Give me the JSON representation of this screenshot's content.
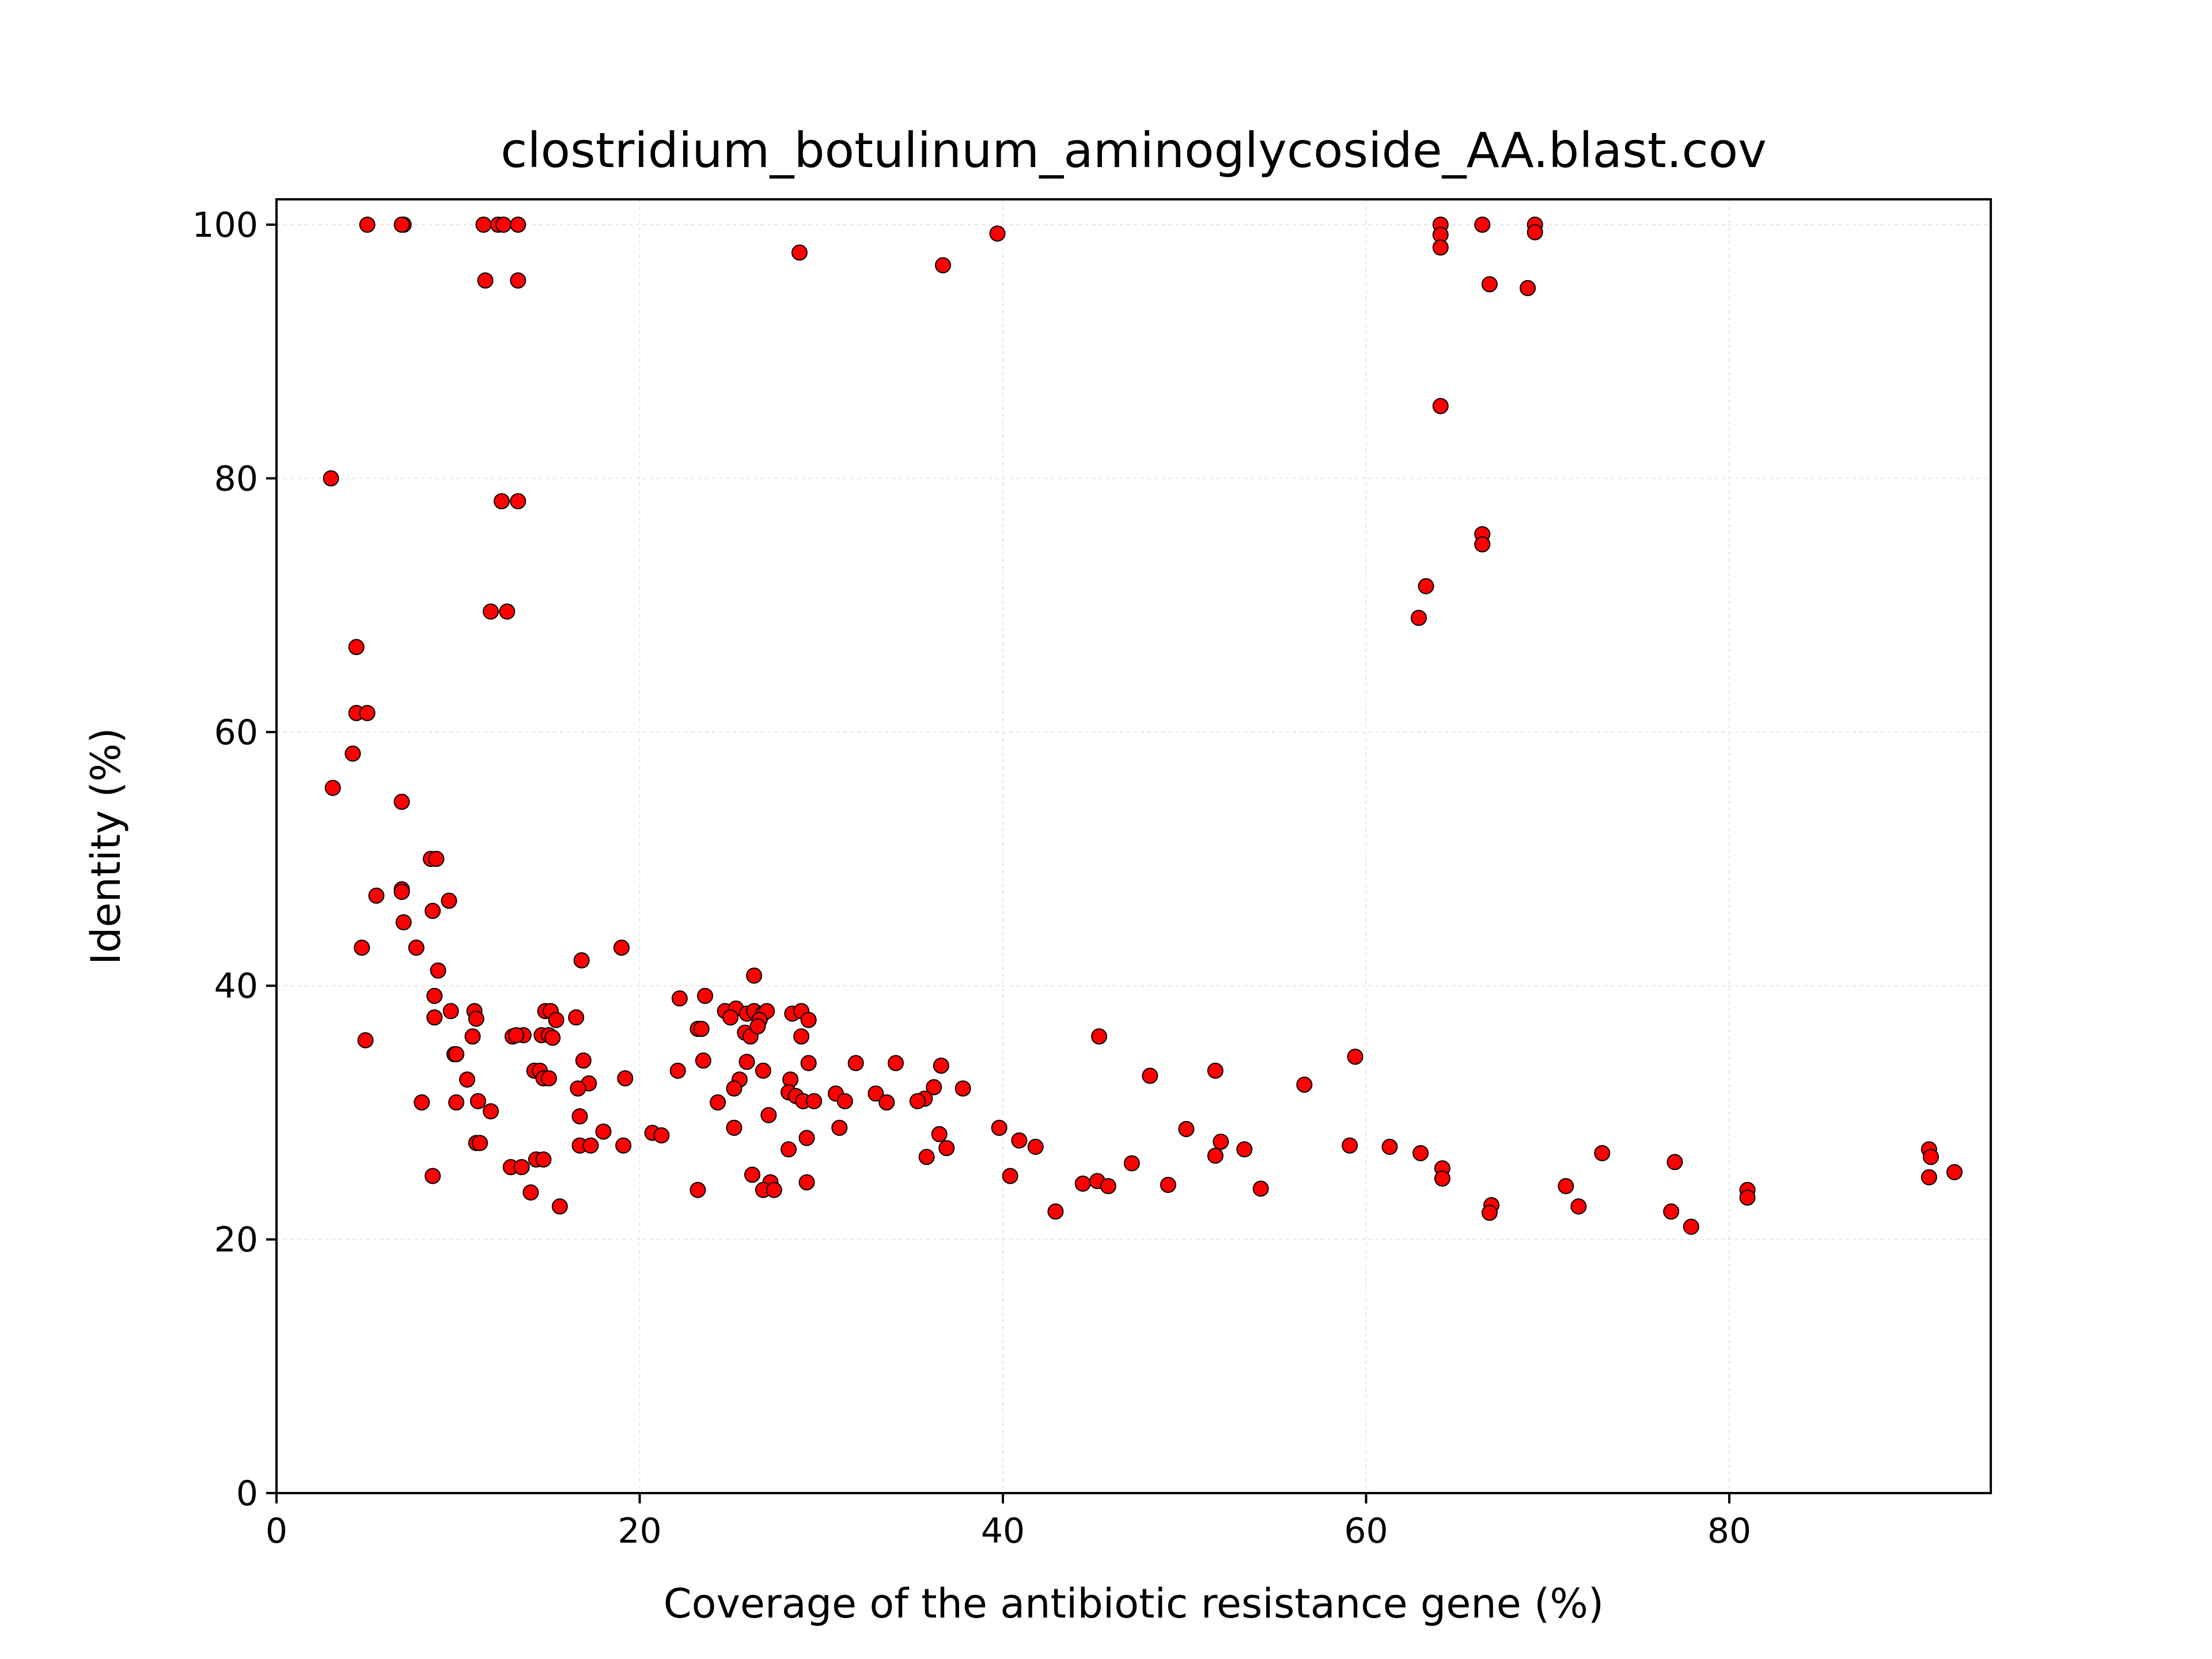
{
  "chart_data": {
    "type": "scatter",
    "title": "clostridium_botulinum_aminoglycoside_AA.blast.cov",
    "xlabel": "Coverage of the antibiotic resistance gene (%)",
    "ylabel": "Identity (%)",
    "xlim": [
      0,
      94.4
    ],
    "ylim": [
      0,
      102
    ],
    "xticks": [
      0,
      20,
      40,
      60,
      80
    ],
    "yticks": [
      0,
      20,
      40,
      60,
      80,
      100
    ],
    "grid": true,
    "marker_color": "#ff0000",
    "marker_edge_color": "#000000",
    "points": [
      [
        5,
        100
      ],
      [
        7,
        100
      ],
      [
        6.9,
        100
      ],
      [
        11.4,
        100
      ],
      [
        12.2,
        100
      ],
      [
        12.5,
        100
      ],
      [
        13.3,
        100
      ],
      [
        11.5,
        95.6
      ],
      [
        13.3,
        95.6
      ],
      [
        28.8,
        97.8
      ],
      [
        36.7,
        96.8
      ],
      [
        39.7,
        99.3
      ],
      [
        64.1,
        100
      ],
      [
        64.1,
        99.2
      ],
      [
        64.1,
        98.2
      ],
      [
        66.4,
        100
      ],
      [
        69.3,
        100
      ],
      [
        69.3,
        99.4
      ],
      [
        66.8,
        95.3
      ],
      [
        68.9,
        95
      ],
      [
        64.1,
        85.7
      ],
      [
        66.4,
        75.6
      ],
      [
        66.4,
        74.8
      ],
      [
        63.3,
        71.5
      ],
      [
        62.9,
        69
      ],
      [
        3,
        80
      ],
      [
        12.4,
        78.2
      ],
      [
        13.3,
        78.2
      ],
      [
        11.8,
        69.5
      ],
      [
        12.7,
        69.5
      ],
      [
        4.4,
        66.7
      ],
      [
        4.4,
        61.5
      ],
      [
        5,
        61.5
      ],
      [
        4.2,
        58.3
      ],
      [
        3.1,
        55.6
      ],
      [
        6.9,
        54.5
      ],
      [
        8.5,
        50
      ],
      [
        8.8,
        50
      ],
      [
        5.5,
        47.1
      ],
      [
        6.9,
        47.6
      ],
      [
        6.9,
        47.4
      ],
      [
        9.5,
        46.7
      ],
      [
        8.6,
        45.9
      ],
      [
        7,
        45
      ],
      [
        4.7,
        43
      ],
      [
        7.7,
        43
      ],
      [
        19,
        43
      ],
      [
        16.8,
        42
      ],
      [
        8.9,
        41.2
      ],
      [
        26.3,
        40.8
      ],
      [
        8.7,
        39.2
      ],
      [
        22.2,
        39
      ],
      [
        23.6,
        39.2
      ],
      [
        4.9,
        35.7
      ],
      [
        8.7,
        37.5
      ],
      [
        9.6,
        38
      ],
      [
        10.9,
        38
      ],
      [
        11,
        37.4
      ],
      [
        14.8,
        38
      ],
      [
        15.1,
        38
      ],
      [
        15.4,
        37.3
      ],
      [
        16.5,
        37.5
      ],
      [
        24.7,
        38
      ],
      [
        25.3,
        38.2
      ],
      [
        25,
        37.5
      ],
      [
        25.9,
        37.8
      ],
      [
        26.3,
        38
      ],
      [
        26.8,
        37.8
      ],
      [
        27,
        38
      ],
      [
        26.6,
        37.3
      ],
      [
        28.4,
        37.8
      ],
      [
        28.9,
        38
      ],
      [
        29.3,
        37.3
      ],
      [
        10.8,
        36
      ],
      [
        13,
        36
      ],
      [
        13.6,
        36.1
      ],
      [
        13.2,
        36.1
      ],
      [
        14.6,
        36.1
      ],
      [
        15,
        36.1
      ],
      [
        15.2,
        35.9
      ],
      [
        23.2,
        36.6
      ],
      [
        23.4,
        36.6
      ],
      [
        25.8,
        36.3
      ],
      [
        26.1,
        36
      ],
      [
        26.5,
        36.8
      ],
      [
        28.9,
        36
      ],
      [
        45.3,
        36
      ],
      [
        9.8,
        34.6
      ],
      [
        9.9,
        34.6
      ],
      [
        16.9,
        34.1
      ],
      [
        14.2,
        33.3
      ],
      [
        14.5,
        33.3
      ],
      [
        14.7,
        32.7
      ],
      [
        15,
        32.7
      ],
      [
        10.5,
        32.6
      ],
      [
        17.2,
        32.3
      ],
      [
        19.2,
        32.7
      ],
      [
        22.1,
        33.3
      ],
      [
        23.5,
        34.1
      ],
      [
        25.9,
        34
      ],
      [
        25.5,
        32.6
      ],
      [
        26.8,
        33.3
      ],
      [
        28.3,
        32.6
      ],
      [
        29.3,
        33.9
      ],
      [
        31.9,
        33.9
      ],
      [
        34.1,
        33.9
      ],
      [
        36.6,
        33.7
      ],
      [
        51.7,
        33.3
      ],
      [
        48.1,
        32.9
      ],
      [
        59.4,
        34.4
      ],
      [
        56.6,
        32.2
      ],
      [
        16.6,
        31.9
      ],
      [
        25.2,
        31.9
      ],
      [
        28.2,
        31.6
      ],
      [
        28.6,
        31.3
      ],
      [
        30.8,
        31.5
      ],
      [
        33,
        31.5
      ],
      [
        36.2,
        32
      ],
      [
        37.8,
        31.9
      ],
      [
        35.7,
        31.1
      ],
      [
        35.3,
        30.9
      ],
      [
        33.6,
        30.8
      ],
      [
        31.3,
        30.9
      ],
      [
        29,
        30.9
      ],
      [
        29.6,
        30.9
      ],
      [
        24.3,
        30.8
      ],
      [
        8,
        30.8
      ],
      [
        9.9,
        30.8
      ],
      [
        11.1,
        30.9
      ],
      [
        11.8,
        30.1
      ],
      [
        16.7,
        29.7
      ],
      [
        27.1,
        29.8
      ],
      [
        18,
        28.5
      ],
      [
        20.7,
        28.4
      ],
      [
        21.2,
        28.2
      ],
      [
        25.2,
        28.8
      ],
      [
        29.2,
        28
      ],
      [
        31,
        28.8
      ],
      [
        36.5,
        28.3
      ],
      [
        39.8,
        28.8
      ],
      [
        50.1,
        28.7
      ],
      [
        16.7,
        27.4
      ],
      [
        17.3,
        27.4
      ],
      [
        19.1,
        27.4
      ],
      [
        11,
        27.6
      ],
      [
        11.2,
        27.6
      ],
      [
        28.2,
        27.1
      ],
      [
        36.9,
        27.2
      ],
      [
        40.9,
        27.8
      ],
      [
        41.8,
        27.3
      ],
      [
        52,
        27.7
      ],
      [
        53.3,
        27.1
      ],
      [
        59.1,
        27.4
      ],
      [
        61.3,
        27.3
      ],
      [
        63,
        26.8
      ],
      [
        73,
        26.8
      ],
      [
        77,
        26.1
      ],
      [
        91,
        27.1
      ],
      [
        91.1,
        26.5
      ],
      [
        92.4,
        25.3
      ],
      [
        91,
        24.9
      ],
      [
        47.1,
        26
      ],
      [
        51.7,
        26.6
      ],
      [
        35.8,
        26.5
      ],
      [
        14.3,
        26.3
      ],
      [
        14.7,
        26.3
      ],
      [
        12.9,
        25.7
      ],
      [
        13.5,
        25.7
      ],
      [
        8.6,
        25
      ],
      [
        26.2,
        25.1
      ],
      [
        27.2,
        24.5
      ],
      [
        29.2,
        24.5
      ],
      [
        40.4,
        25
      ],
      [
        44.4,
        24.4
      ],
      [
        45.2,
        24.6
      ],
      [
        45.8,
        24.2
      ],
      [
        49.1,
        24.3
      ],
      [
        54.2,
        24
      ],
      [
        64.2,
        25.6
      ],
      [
        64.2,
        24.8
      ],
      [
        71,
        24.2
      ],
      [
        81,
        23.9
      ],
      [
        81,
        23.3
      ],
      [
        23.2,
        23.9
      ],
      [
        26.8,
        23.9
      ],
      [
        27.4,
        23.9
      ],
      [
        14,
        23.7
      ],
      [
        15.6,
        22.6
      ],
      [
        42.9,
        22.2
      ],
      [
        66.9,
        22.7
      ],
      [
        66.8,
        22.1
      ],
      [
        71.7,
        22.6
      ],
      [
        76.8,
        22.2
      ],
      [
        77.9,
        21
      ]
    ]
  }
}
